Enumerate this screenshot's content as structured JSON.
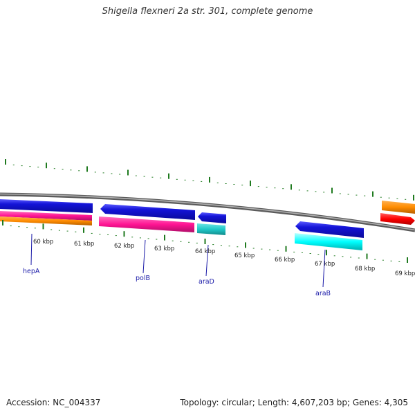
{
  "title": "Shigella flexneri 2a str. 301, complete genome",
  "footer": {
    "accession": "Accession: NC_004337",
    "summary": "Topology: circular; Length: 4,607,203 bp; Genes: 4,305"
  },
  "ruler": {
    "ticks": [
      "60 kbp",
      "61 kbp",
      "62 kbp",
      "63 kbp",
      "64 kbp",
      "65 kbp",
      "66 kbp",
      "67 kbp",
      "68 kbp",
      "69 kbp"
    ]
  },
  "genes": [
    {
      "name": "hepA",
      "strand": "forward"
    },
    {
      "name": "polB",
      "strand": "reverse"
    },
    {
      "name": "araD",
      "strand": "reverse"
    },
    {
      "name": "araB",
      "strand": "reverse"
    }
  ],
  "colors": {
    "backbone": "#8a8a8a",
    "tick": "#1f7a1f",
    "gene_blue": "#1414d8",
    "magenta": "#ff1493",
    "orange": "#ff8c00",
    "teal": "#20c8c8",
    "cyan": "#00ffff",
    "red": "#ff0000",
    "label": "#1a1aa8"
  }
}
